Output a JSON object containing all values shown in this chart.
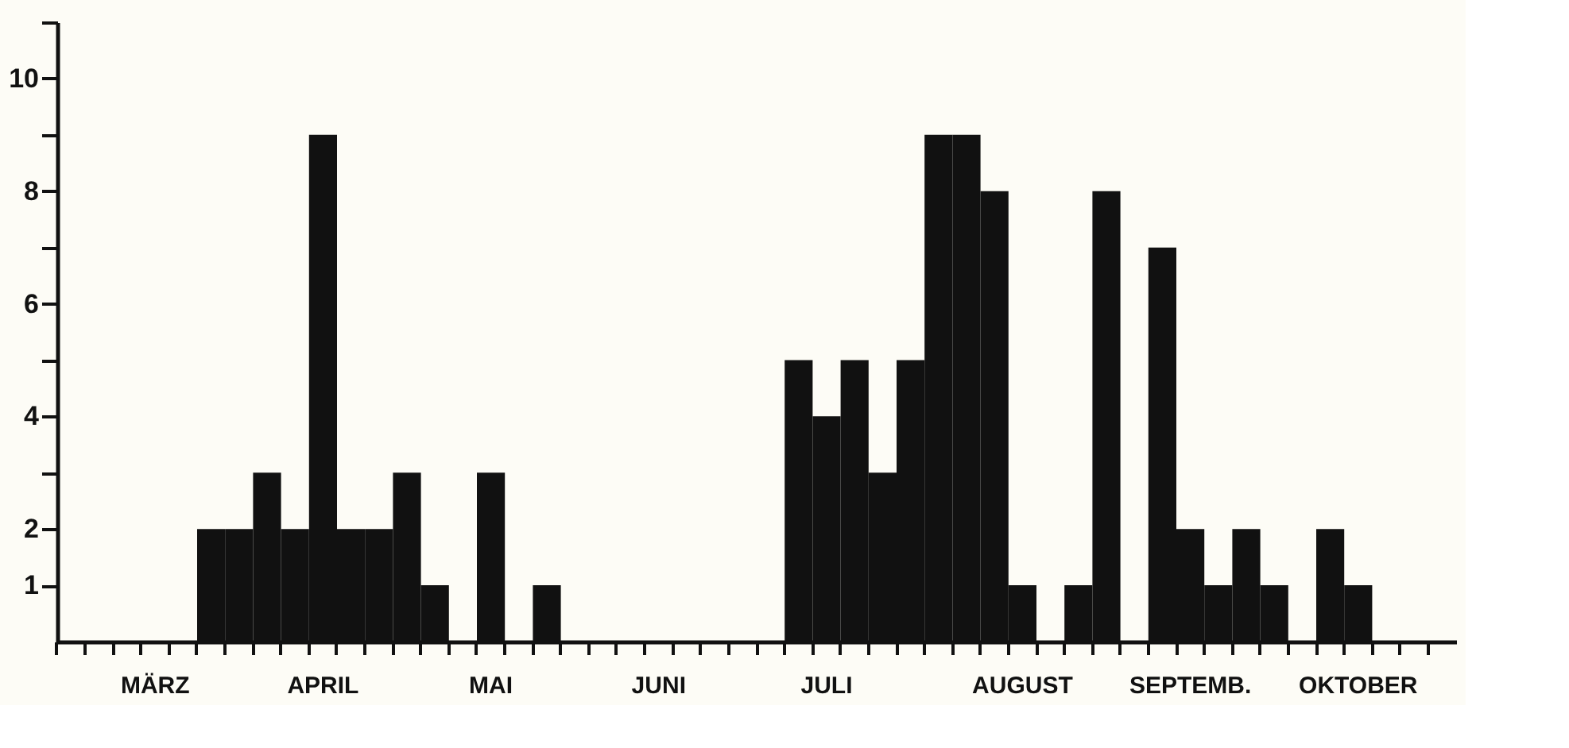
{
  "chart_data": {
    "type": "bar",
    "categories": [
      null,
      null,
      null,
      "MÄRZ",
      null,
      null,
      null,
      null,
      null,
      "APRIL",
      null,
      null,
      null,
      null,
      null,
      "MAI",
      null,
      null,
      null,
      null,
      null,
      "JUNI",
      null,
      null,
      null,
      null,
      null,
      "JULI",
      null,
      null,
      null,
      null,
      null,
      null,
      "AUGUST",
      null,
      null,
      null,
      null,
      null,
      "SEPTEMB.",
      null,
      null,
      null,
      null,
      null,
      "OKTOBER",
      null,
      null,
      null
    ],
    "values": [
      0,
      0,
      0,
      0,
      0,
      2,
      2,
      3,
      2,
      9,
      2,
      2,
      3,
      1,
      0,
      3,
      0,
      1,
      0,
      0,
      0,
      0,
      0,
      0,
      0,
      0,
      5,
      4,
      5,
      3,
      5,
      9,
      9,
      8,
      1,
      0,
      1,
      8,
      0,
      7,
      2,
      1,
      2,
      1,
      0,
      2,
      1,
      0,
      0,
      0
    ],
    "color": "#111111",
    "ylim": [
      0,
      11
    ],
    "yticks": [
      1,
      2,
      {
        "value": 3,
        "label": null
      },
      4,
      {
        "value": 5,
        "label": null
      },
      6,
      {
        "value": 7,
        "label": null
      },
      8,
      {
        "value": 9,
        "label": null
      },
      10,
      {
        "value": 11,
        "label": null
      }
    ],
    "grid": false
  }
}
